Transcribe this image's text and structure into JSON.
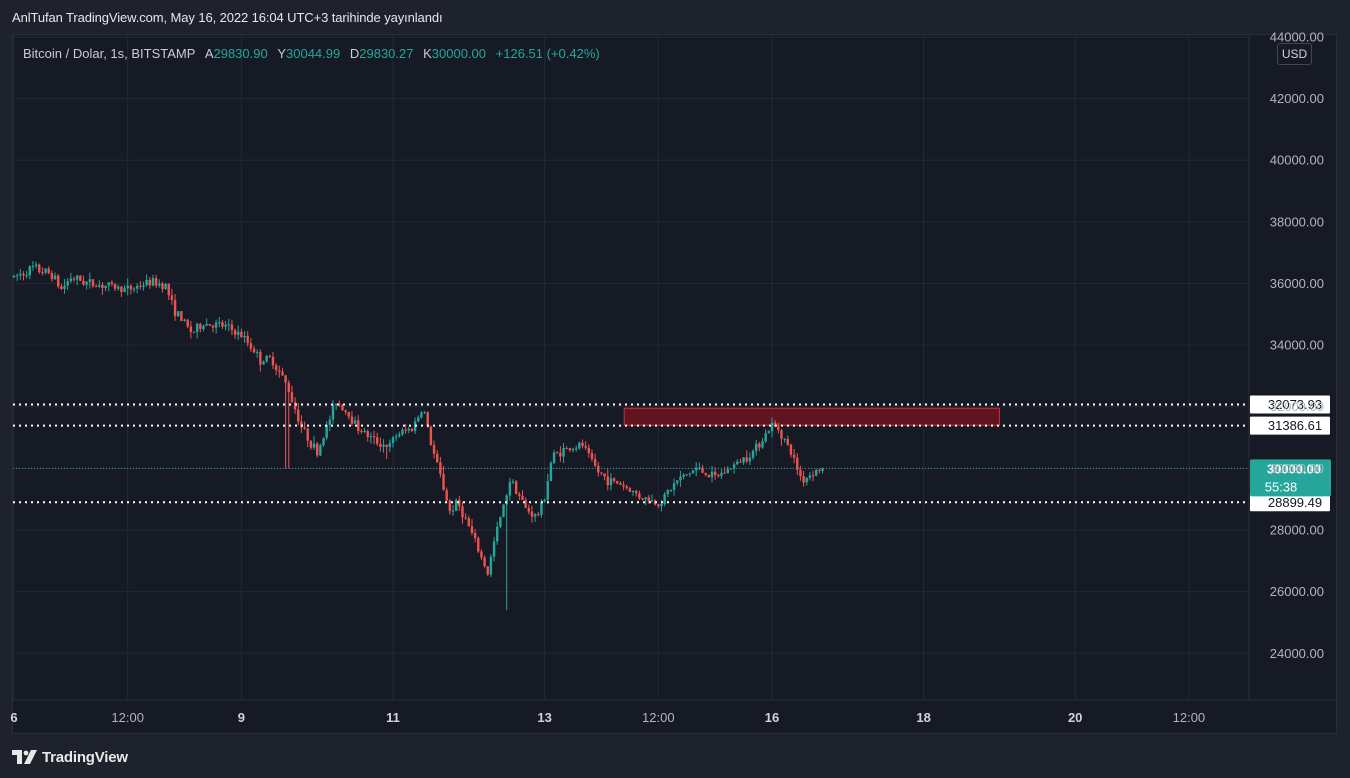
{
  "header": {
    "published_text": "AnlTufan TradingView.com, May 16, 2022 16:04 UTC+3 tarihinde yayınlandı"
  },
  "legend": {
    "symbol": "Bitcoin / Dolar, 1s, BITSTAMP",
    "open_label": "A",
    "open_value": "29830.90",
    "high_label": "Y",
    "high_value": "30044.99",
    "low_label": "D",
    "low_value": "29830.27",
    "close_label": "K",
    "close_value": "30000.00",
    "change": "+126.51 (+0.42%)"
  },
  "currency_button": {
    "label": "USD"
  },
  "footer": {
    "brand": "TradingView"
  },
  "colors": {
    "up": "#26a69a",
    "down": "#ef5350",
    "zone": "#6d1420",
    "zone_border": "#d32f2f",
    "last_price_bg": "#26a69a"
  },
  "chart_data": {
    "type": "candlestick",
    "title": "Bitcoin / Dolar, 1s, BITSTAMP",
    "y_axis": {
      "range": [
        22700,
        44600
      ],
      "ticks": [
        "24000.00",
        "26000.00",
        "28000.00",
        "30000.00",
        "32000.00",
        "34000.00",
        "36000.00",
        "38000.00",
        "40000.00",
        "42000.00",
        "44000.00"
      ],
      "tick_values": [
        24000,
        26000,
        28000,
        30000,
        32000,
        34000,
        36000,
        38000,
        40000,
        42000,
        44000
      ]
    },
    "x_axis": {
      "ticks": [
        "6",
        "12:00",
        "9",
        "11",
        "13",
        "12:00",
        "16",
        "18",
        "20",
        "12:00"
      ],
      "tick_positions_days": [
        6.0,
        7.5,
        9.0,
        11.0,
        13.0,
        14.5,
        16.0,
        18.0,
        20.0,
        21.5
      ],
      "range_days": [
        6.0,
        22.5
      ]
    },
    "grid": true,
    "horizontal_levels": [
      {
        "value": 32073.93,
        "label": "32073.93",
        "style": "dotted"
      },
      {
        "value": 31386.61,
        "label": "31386.61",
        "style": "dotted"
      },
      {
        "value": 28899.49,
        "label": "28899.49",
        "style": "dotted"
      }
    ],
    "last_price": {
      "value": 30000.0,
      "label": "30000.00",
      "countdown": "55:38"
    },
    "resistance_zone": {
      "from_day": 14.05,
      "to_day": 19.0,
      "low": 31400,
      "high": 31950
    },
    "price_path": {
      "x_days": [
        6.0,
        6.25,
        6.5,
        6.62,
        6.75,
        7.0,
        7.3,
        7.5,
        7.8,
        8.0,
        8.1,
        8.25,
        8.35,
        8.5,
        8.8,
        9.0,
        9.15,
        9.25,
        9.4,
        9.6,
        9.8,
        10.0,
        10.15,
        10.25,
        10.4,
        10.55,
        10.75,
        10.95,
        11.05,
        11.25,
        11.4,
        11.5,
        11.62,
        11.75,
        11.85,
        12.0,
        12.15,
        12.25,
        12.35,
        12.45,
        12.55,
        12.75,
        12.9,
        13.0,
        13.1,
        13.25,
        13.5,
        13.7,
        13.85,
        14.0,
        14.25,
        14.5,
        14.75,
        15.0,
        15.25,
        15.5,
        15.75,
        16.0,
        16.1,
        16.25,
        16.4,
        16.55,
        16.7
      ],
      "y_values": [
        36200,
        36500,
        36300,
        35800,
        36200,
        36000,
        35900,
        35800,
        36050,
        35950,
        35200,
        34700,
        34400,
        34700,
        34600,
        34300,
        33900,
        33500,
        33550,
        32700,
        31300,
        30500,
        31500,
        32200,
        31800,
        31300,
        30900,
        30700,
        31100,
        31300,
        32000,
        30800,
        29800,
        28600,
        28900,
        28100,
        27200,
        26600,
        27800,
        28700,
        29700,
        28700,
        28400,
        29100,
        30400,
        30600,
        30750,
        29900,
        29600,
        29500,
        29100,
        28850,
        29600,
        30000,
        29700,
        30100,
        30550,
        31400,
        31250,
        30500,
        29600,
        29900,
        30000
      ]
    },
    "events": [
      {
        "day": 9.6,
        "value": 30000,
        "type": "spike_low"
      },
      {
        "day": 10.9,
        "value": 30300,
        "type": "spike_low"
      },
      {
        "day": 12.5,
        "value": 25400,
        "type": "spike_low"
      }
    ]
  }
}
